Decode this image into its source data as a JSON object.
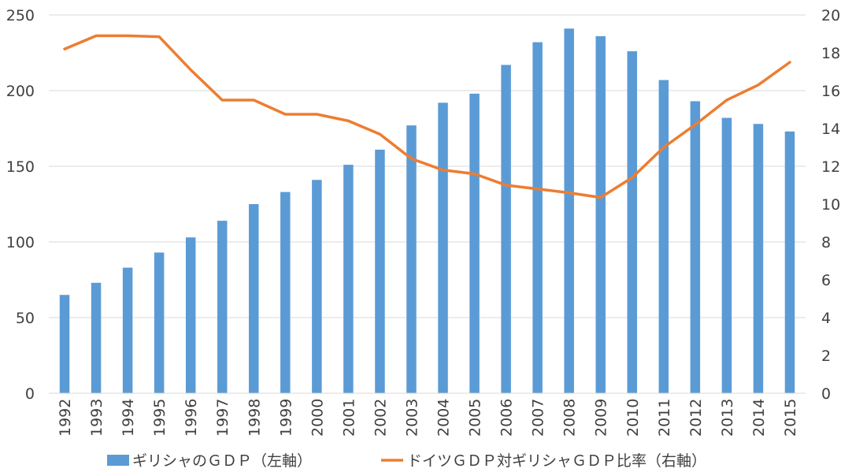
{
  "chart_data": {
    "type": "bar",
    "categories": [
      "1992",
      "1993",
      "1994",
      "1995",
      "1996",
      "1997",
      "1998",
      "1999",
      "2000",
      "2001",
      "2002",
      "2003",
      "2004",
      "2005",
      "2006",
      "2007",
      "2008",
      "2009",
      "2010",
      "2011",
      "2012",
      "2013",
      "2014",
      "2015"
    ],
    "series": [
      {
        "name": "ギリシャのＧＤＰ（左軸）",
        "type": "bar",
        "axis": "left",
        "color": "#5B9BD5",
        "values": [
          65,
          73,
          83,
          93,
          103,
          114,
          125,
          133,
          141,
          151,
          161,
          177,
          192,
          198,
          217,
          232,
          241,
          236,
          226,
          207,
          193,
          182,
          178,
          173
        ]
      },
      {
        "name": "ドイツＧＤＰ対ギリシャＧＤＰ比率（右軸）",
        "type": "line",
        "axis": "right",
        "color": "#ED7D31",
        "values": [
          18.2,
          18.9,
          18.9,
          18.85,
          17.1,
          15.5,
          15.5,
          14.75,
          14.75,
          14.4,
          13.7,
          12.4,
          11.8,
          11.6,
          11.0,
          10.8,
          10.6,
          10.35,
          11.4,
          13.0,
          14.2,
          15.5,
          16.3,
          17.5
        ]
      }
    ],
    "y_left": {
      "ylim": [
        0,
        250
      ],
      "ticks": [
        "0",
        "50",
        "100",
        "150",
        "200",
        "250"
      ]
    },
    "y_right": {
      "ylim": [
        0,
        20
      ],
      "ticks": [
        "0",
        "2",
        "4",
        "6",
        "8",
        "10",
        "12",
        "14",
        "16",
        "18",
        "20"
      ]
    },
    "grid": true,
    "legend_placement": "bottom",
    "title": "",
    "xlabel": "",
    "ylabel": ""
  }
}
